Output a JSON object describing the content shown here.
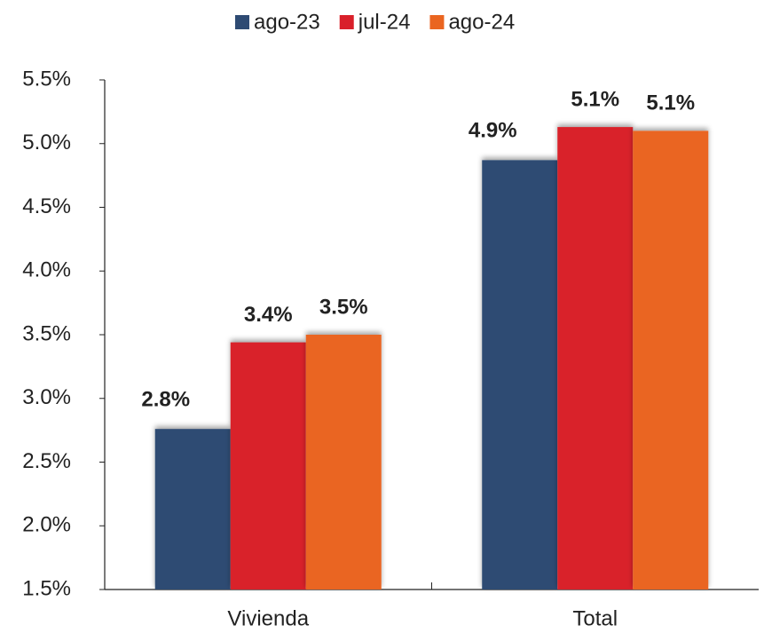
{
  "chart_data": {
    "type": "bar",
    "categories": [
      "Vivienda",
      "Total"
    ],
    "series": [
      {
        "name": "ago-23",
        "color": "#2e4b73",
        "values": [
          2.76,
          4.87
        ],
        "value_labels": [
          "2.8%",
          "4.9%"
        ]
      },
      {
        "name": "jul-24",
        "color": "#d9202a",
        "values": [
          3.44,
          5.13
        ],
        "value_labels": [
          "3.4%",
          "5.1%"
        ]
      },
      {
        "name": "ago-24",
        "color": "#ea6520",
        "values": [
          3.5,
          5.1
        ],
        "value_labels": [
          "3.5%",
          "5.1%"
        ]
      }
    ],
    "ylim": [
      1.5,
      5.5
    ],
    "yticks": [
      {
        "value": 1.5,
        "label": "1.5%"
      },
      {
        "value": 2.0,
        "label": "2.0%"
      },
      {
        "value": 2.5,
        "label": "2.5%"
      },
      {
        "value": 3.0,
        "label": "3.0%"
      },
      {
        "value": 3.5,
        "label": "3.5%"
      },
      {
        "value": 4.0,
        "label": "4.0%"
      },
      {
        "value": 4.5,
        "label": "4.5%"
      },
      {
        "value": 5.0,
        "label": "5.0%"
      },
      {
        "value": 5.5,
        "label": "5.5%"
      }
    ],
    "legend": "top",
    "grid": false
  }
}
